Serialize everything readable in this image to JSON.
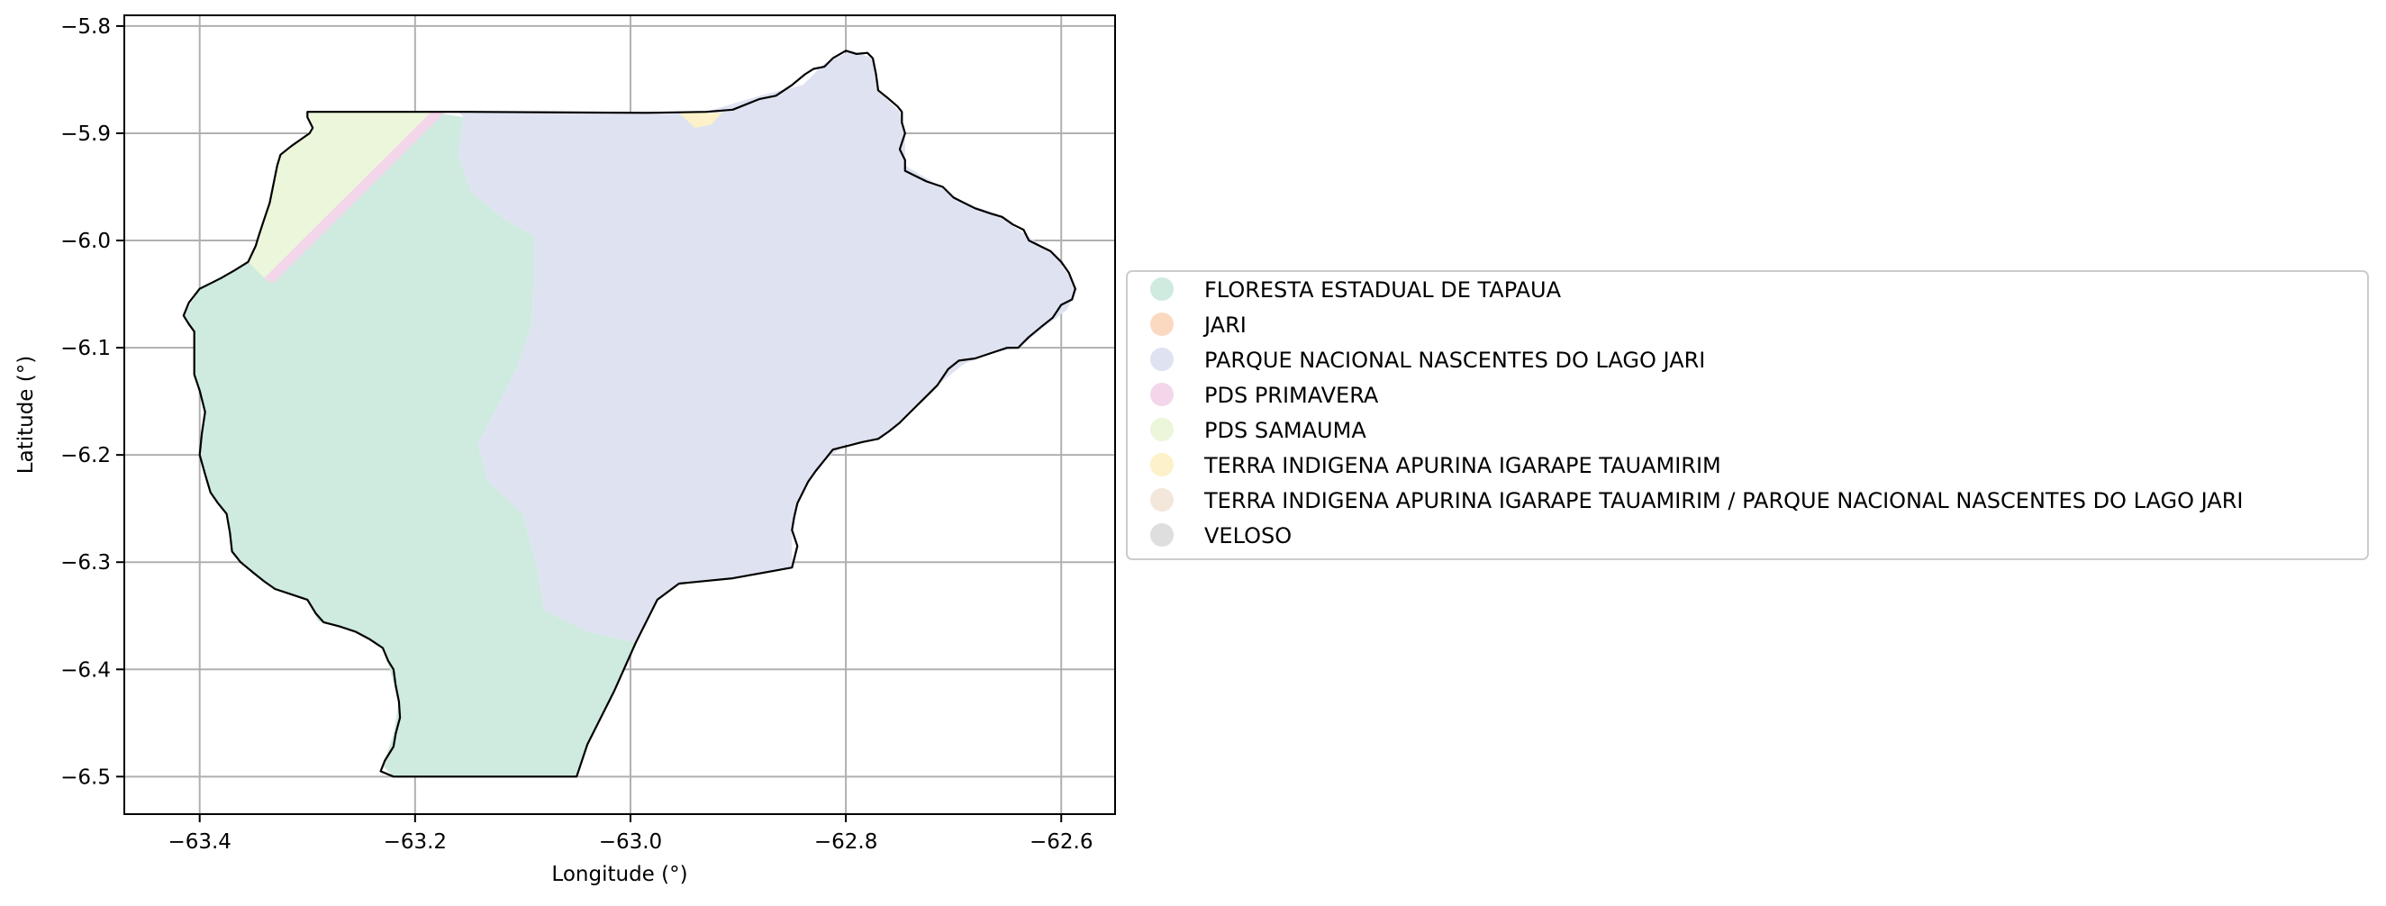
{
  "chart_data": {
    "type": "map",
    "xlabel": "Longitude (°)",
    "ylabel": "Latitude (°)",
    "xlim": [
      -63.47,
      -62.55
    ],
    "ylim": [
      -6.535,
      -5.79
    ],
    "xticks": [
      -63.4,
      -63.2,
      -63.0,
      -62.8,
      -62.6
    ],
    "yticks": [
      -5.8,
      -5.9,
      -6.0,
      -6.1,
      -6.2,
      -6.3,
      -6.4,
      -6.5
    ],
    "xtick_labels": [
      "−63.4",
      "−63.2",
      "−63.0",
      "−62.8",
      "−62.6"
    ],
    "ytick_labels": [
      "−5.8",
      "−5.9",
      "−6.0",
      "−6.1",
      "−6.2",
      "−6.3",
      "−6.4",
      "−6.5"
    ],
    "grid": true,
    "legend_position": "right, outside plot",
    "boundary_color": "#000000",
    "legend": [
      {
        "label": "FLORESTA ESTADUAL DE TAPAUA",
        "color": "#cfeadf"
      },
      {
        "label": "JARI",
        "color": "#fbd9c1"
      },
      {
        "label": "PARQUE NACIONAL NASCENTES DO LAGO JARI",
        "color": "#dfe3f1"
      },
      {
        "label": "PDS PRIMAVERA",
        "color": "#f4d6ea"
      },
      {
        "label": "PDS SAMAUMA",
        "color": "#ecf6da"
      },
      {
        "label": "TERRA INDIGENA APURINA IGARAPE TAUAMIRIM",
        "color": "#fcf1c8"
      },
      {
        "label": "TERRA INDIGENA APURINA IGARAPE TAUAMIRIM / PARQUE NACIONAL NASCENTES DO LAGO JARI",
        "color": "#f3e7dc"
      },
      {
        "label": "VELOSO",
        "color": "#dedede"
      }
    ],
    "regions": [
      {
        "name": "PARQUE NACIONAL NASCENTES DO LAGO JARI",
        "color": "#dfe3f1",
        "coords": [
          [
            -63.16,
            -5.88
          ],
          [
            -62.985,
            -5.88
          ],
          [
            -62.93,
            -5.88
          ],
          [
            -62.88,
            -5.865
          ],
          [
            -62.84,
            -5.855
          ],
          [
            -62.82,
            -5.835
          ],
          [
            -62.795,
            -5.823
          ],
          [
            -62.775,
            -5.83
          ],
          [
            -62.77,
            -5.86
          ],
          [
            -62.75,
            -5.88
          ],
          [
            -62.745,
            -5.905
          ],
          [
            -62.745,
            -5.93
          ],
          [
            -62.72,
            -5.945
          ],
          [
            -62.69,
            -5.965
          ],
          [
            -62.66,
            -5.975
          ],
          [
            -62.64,
            -5.99
          ],
          [
            -62.625,
            -6.0
          ],
          [
            -62.605,
            -6.015
          ],
          [
            -62.585,
            -6.045
          ],
          [
            -62.595,
            -6.065
          ],
          [
            -62.615,
            -6.08
          ],
          [
            -62.64,
            -6.1
          ],
          [
            -62.665,
            -6.105
          ],
          [
            -62.69,
            -6.115
          ],
          [
            -62.715,
            -6.135
          ],
          [
            -62.74,
            -6.16
          ],
          [
            -62.77,
            -6.185
          ],
          [
            -62.8,
            -6.19
          ],
          [
            -62.82,
            -6.205
          ],
          [
            -62.835,
            -6.225
          ],
          [
            -62.845,
            -6.245
          ],
          [
            -62.85,
            -6.27
          ],
          [
            -62.85,
            -6.305
          ],
          [
            -62.905,
            -6.315
          ],
          [
            -62.955,
            -6.32
          ],
          [
            -62.975,
            -6.335
          ],
          [
            -62.995,
            -6.375
          ],
          [
            -63.04,
            -6.365
          ],
          [
            -63.08,
            -6.345
          ],
          [
            -63.088,
            -6.3
          ],
          [
            -63.1,
            -6.255
          ],
          [
            -63.132,
            -6.225
          ],
          [
            -63.142,
            -6.19
          ],
          [
            -63.126,
            -6.16
          ],
          [
            -63.106,
            -6.12
          ],
          [
            -63.092,
            -6.08
          ],
          [
            -63.09,
            -6.04
          ],
          [
            -63.09,
            -5.995
          ],
          [
            -63.117,
            -5.98
          ],
          [
            -63.148,
            -5.955
          ],
          [
            -63.16,
            -5.92
          ],
          [
            -63.155,
            -5.885
          ]
        ]
      },
      {
        "name": "FLORESTA ESTADUAL DE TAPAUA",
        "color": "#cfeadf",
        "coords": [
          [
            -63.155,
            -5.885
          ],
          [
            -63.16,
            -5.92
          ],
          [
            -63.148,
            -5.955
          ],
          [
            -63.117,
            -5.98
          ],
          [
            -63.09,
            -5.995
          ],
          [
            -63.09,
            -6.04
          ],
          [
            -63.092,
            -6.08
          ],
          [
            -63.106,
            -6.12
          ],
          [
            -63.126,
            -6.16
          ],
          [
            -63.142,
            -6.19
          ],
          [
            -63.132,
            -6.225
          ],
          [
            -63.1,
            -6.255
          ],
          [
            -63.088,
            -6.3
          ],
          [
            -63.08,
            -6.345
          ],
          [
            -63.04,
            -6.365
          ],
          [
            -62.995,
            -6.375
          ],
          [
            -63.015,
            -6.42
          ],
          [
            -63.03,
            -6.45
          ],
          [
            -63.04,
            -6.47
          ],
          [
            -63.05,
            -6.5
          ],
          [
            -63.22,
            -6.5
          ],
          [
            -63.23,
            -6.49
          ],
          [
            -63.22,
            -6.46
          ],
          [
            -63.215,
            -6.43
          ],
          [
            -63.225,
            -6.395
          ],
          [
            -63.23,
            -6.38
          ],
          [
            -63.255,
            -6.365
          ],
          [
            -63.29,
            -6.355
          ],
          [
            -63.3,
            -6.335
          ],
          [
            -63.33,
            -6.325
          ],
          [
            -63.35,
            -6.31
          ],
          [
            -63.37,
            -6.29
          ],
          [
            -63.375,
            -6.255
          ],
          [
            -63.39,
            -6.235
          ],
          [
            -63.4,
            -6.2
          ],
          [
            -63.395,
            -6.16
          ],
          [
            -63.405,
            -6.125
          ],
          [
            -63.405,
            -6.085
          ],
          [
            -63.415,
            -6.07
          ],
          [
            -63.4,
            -6.045
          ],
          [
            -63.38,
            -6.035
          ],
          [
            -63.355,
            -6.02
          ],
          [
            -63.33,
            -6.035
          ],
          [
            -63.285,
            -5.98
          ],
          [
            -63.185,
            -5.88
          ]
        ]
      },
      {
        "name": "PDS SAMAUMA",
        "color": "#ecf6da",
        "coords": [
          [
            -63.3,
            -5.88
          ],
          [
            -63.185,
            -5.88
          ],
          [
            -63.34,
            -6.035
          ],
          [
            -63.355,
            -6.02
          ],
          [
            -63.345,
            -5.995
          ],
          [
            -63.335,
            -5.965
          ],
          [
            -63.33,
            -5.94
          ],
          [
            -63.325,
            -5.92
          ],
          [
            -63.305,
            -5.905
          ],
          [
            -63.295,
            -5.895
          ]
        ]
      },
      {
        "name": "PDS PRIMAVERA",
        "color": "#f4d6ea",
        "coords": [
          [
            -63.185,
            -5.88
          ],
          [
            -63.172,
            -5.88
          ],
          [
            -63.332,
            -6.04
          ],
          [
            -63.34,
            -6.035
          ]
        ]
      },
      {
        "name": "TERRA INDIGENA APURINA IGARAPE TAUAMIRIM",
        "color": "#fcf1c8",
        "coords": [
          [
            -62.955,
            -5.881
          ],
          [
            -62.915,
            -5.881
          ],
          [
            -62.925,
            -5.892
          ],
          [
            -62.94,
            -5.895
          ]
        ]
      }
    ],
    "boundary": [
      [
        -63.3,
        -5.88
      ],
      [
        -63.15,
        -5.88
      ],
      [
        -62.985,
        -5.881
      ],
      [
        -62.93,
        -5.88
      ],
      [
        -62.905,
        -5.878
      ],
      [
        -62.88,
        -5.868
      ],
      [
        -62.865,
        -5.865
      ],
      [
        -62.85,
        -5.855
      ],
      [
        -62.838,
        -5.845
      ],
      [
        -62.83,
        -5.84
      ],
      [
        -62.82,
        -5.838
      ],
      [
        -62.812,
        -5.83
      ],
      [
        -62.8,
        -5.823
      ],
      [
        -62.79,
        -5.826
      ],
      [
        -62.78,
        -5.825
      ],
      [
        -62.775,
        -5.83
      ],
      [
        -62.772,
        -5.845
      ],
      [
        -62.77,
        -5.86
      ],
      [
        -62.76,
        -5.868
      ],
      [
        -62.752,
        -5.875
      ],
      [
        -62.748,
        -5.88
      ],
      [
        -62.748,
        -5.89
      ],
      [
        -62.745,
        -5.9
      ],
      [
        -62.75,
        -5.915
      ],
      [
        -62.745,
        -5.925
      ],
      [
        -62.745,
        -5.935
      ],
      [
        -62.735,
        -5.94
      ],
      [
        -62.725,
        -5.945
      ],
      [
        -62.71,
        -5.95
      ],
      [
        -62.7,
        -5.96
      ],
      [
        -62.69,
        -5.965
      ],
      [
        -62.68,
        -5.97
      ],
      [
        -62.665,
        -5.975
      ],
      [
        -62.655,
        -5.978
      ],
      [
        -62.645,
        -5.985
      ],
      [
        -62.635,
        -5.99
      ],
      [
        -62.63,
        -6.0
      ],
      [
        -62.62,
        -6.005
      ],
      [
        -62.61,
        -6.01
      ],
      [
        -62.6,
        -6.02
      ],
      [
        -62.593,
        -6.03
      ],
      [
        -62.587,
        -6.045
      ],
      [
        -62.59,
        -6.055
      ],
      [
        -62.6,
        -6.06
      ],
      [
        -62.608,
        -6.072
      ],
      [
        -62.618,
        -6.08
      ],
      [
        -62.63,
        -6.09
      ],
      [
        -62.64,
        -6.1
      ],
      [
        -62.65,
        -6.1
      ],
      [
        -62.665,
        -6.105
      ],
      [
        -62.68,
        -6.11
      ],
      [
        -62.695,
        -6.112
      ],
      [
        -62.705,
        -6.12
      ],
      [
        -62.715,
        -6.135
      ],
      [
        -62.725,
        -6.145
      ],
      [
        -62.74,
        -6.16
      ],
      [
        -62.75,
        -6.17
      ],
      [
        -62.76,
        -6.178
      ],
      [
        -62.77,
        -6.185
      ],
      [
        -62.785,
        -6.188
      ],
      [
        -62.8,
        -6.192
      ],
      [
        -62.812,
        -6.195
      ],
      [
        -62.82,
        -6.205
      ],
      [
        -62.828,
        -6.215
      ],
      [
        -62.835,
        -6.225
      ],
      [
        -62.84,
        -6.235
      ],
      [
        -62.845,
        -6.245
      ],
      [
        -62.848,
        -6.258
      ],
      [
        -62.85,
        -6.27
      ],
      [
        -62.845,
        -6.285
      ],
      [
        -62.85,
        -6.305
      ],
      [
        -62.905,
        -6.315
      ],
      [
        -62.955,
        -6.32
      ],
      [
        -62.975,
        -6.335
      ],
      [
        -62.995,
        -6.375
      ],
      [
        -63.015,
        -6.42
      ],
      [
        -63.03,
        -6.45
      ],
      [
        -63.04,
        -6.47
      ],
      [
        -63.05,
        -6.5
      ],
      [
        -63.22,
        -6.5
      ],
      [
        -63.232,
        -6.495
      ],
      [
        -63.228,
        -6.485
      ],
      [
        -63.22,
        -6.472
      ],
      [
        -63.218,
        -6.46
      ],
      [
        -63.214,
        -6.445
      ],
      [
        -63.215,
        -6.43
      ],
      [
        -63.218,
        -6.415
      ],
      [
        -63.22,
        -6.4
      ],
      [
        -63.225,
        -6.392
      ],
      [
        -63.23,
        -6.38
      ],
      [
        -63.242,
        -6.372
      ],
      [
        -63.255,
        -6.365
      ],
      [
        -63.27,
        -6.36
      ],
      [
        -63.285,
        -6.356
      ],
      [
        -63.292,
        -6.348
      ],
      [
        -63.3,
        -6.335
      ],
      [
        -63.315,
        -6.33
      ],
      [
        -63.33,
        -6.325
      ],
      [
        -63.34,
        -6.318
      ],
      [
        -63.35,
        -6.31
      ],
      [
        -63.362,
        -6.3
      ],
      [
        -63.37,
        -6.29
      ],
      [
        -63.372,
        -6.272
      ],
      [
        -63.375,
        -6.255
      ],
      [
        -63.383,
        -6.245
      ],
      [
        -63.39,
        -6.235
      ],
      [
        -63.395,
        -6.218
      ],
      [
        -63.4,
        -6.2
      ],
      [
        -63.398,
        -6.18
      ],
      [
        -63.395,
        -6.16
      ],
      [
        -63.4,
        -6.14
      ],
      [
        -63.405,
        -6.125
      ],
      [
        -63.405,
        -6.105
      ],
      [
        -63.405,
        -6.085
      ],
      [
        -63.41,
        -6.078
      ],
      [
        -63.415,
        -6.07
      ],
      [
        -63.41,
        -6.058
      ],
      [
        -63.4,
        -6.045
      ],
      [
        -63.39,
        -6.04
      ],
      [
        -63.38,
        -6.035
      ],
      [
        -63.368,
        -6.028
      ],
      [
        -63.355,
        -6.02
      ],
      [
        -63.348,
        -6.005
      ],
      [
        -63.345,
        -5.995
      ],
      [
        -63.34,
        -5.98
      ],
      [
        -63.335,
        -5.965
      ],
      [
        -63.332,
        -5.95
      ],
      [
        -63.33,
        -5.94
      ],
      [
        -63.328,
        -5.93
      ],
      [
        -63.325,
        -5.92
      ],
      [
        -63.315,
        -5.912
      ],
      [
        -63.305,
        -5.905
      ],
      [
        -63.298,
        -5.9
      ],
      [
        -63.295,
        -5.895
      ],
      [
        -63.3,
        -5.885
      ]
    ]
  }
}
